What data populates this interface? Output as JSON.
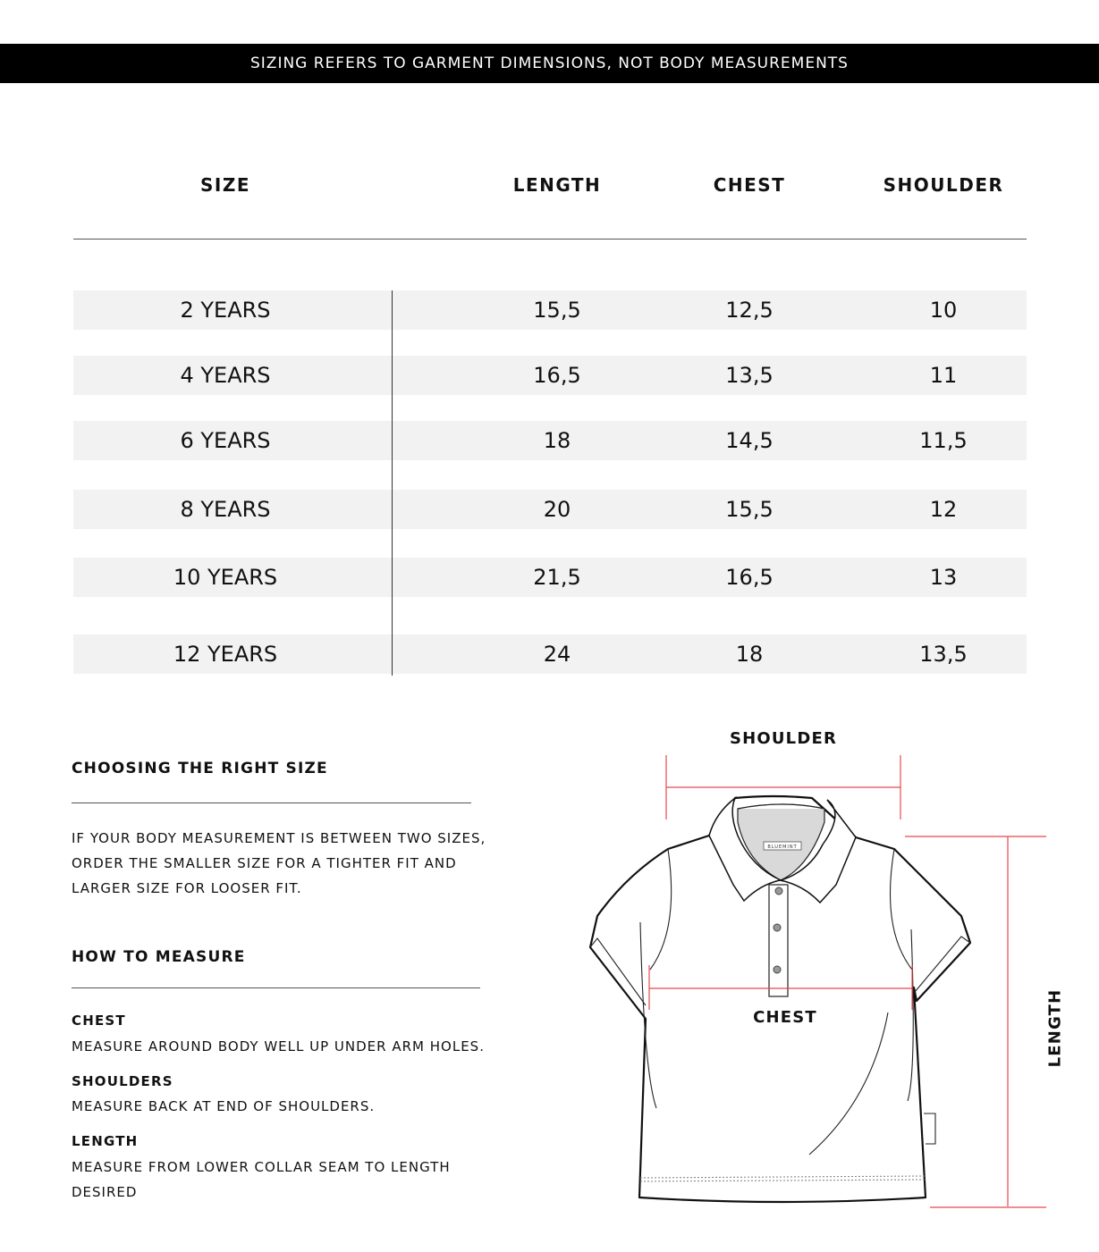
{
  "banner": "SIZING REFERS TO GARMENT DIMENSIONS, NOT BODY MEASUREMENTS",
  "table": {
    "headers": [
      "SIZE",
      "LENGTH",
      "CHEST",
      "SHOULDER"
    ],
    "rows": [
      [
        "2 YEARS",
        "15,5",
        "12,5",
        "10"
      ],
      [
        "4 YEARS",
        "16,5",
        "13,5",
        "11"
      ],
      [
        "6 YEARS",
        "18",
        "14,5",
        "11,5"
      ],
      [
        "8 YEARS",
        "20",
        "15,5",
        "12"
      ],
      [
        "10 YEARS",
        "21,5",
        "16,5",
        "13"
      ],
      [
        "12 YEARS",
        "24",
        "18",
        "13,5"
      ]
    ]
  },
  "choosing": {
    "title": "CHOOSING THE RIGHT SIZE",
    "lines": [
      "IF YOUR BODY MEASUREMENT IS BETWEEN TWO SIZES,",
      "ORDER THE SMALLER SIZE FOR A TIGHTER FIT AND",
      "LARGER SIZE FOR LOOSER FIT."
    ]
  },
  "measure": {
    "title": "HOW TO MEASURE",
    "items": [
      {
        "label": "CHEST",
        "lines": [
          "MEASURE AROUND BODY WELL UP UNDER ARM HOLES."
        ]
      },
      {
        "label": "SHOULDERS",
        "lines": [
          "MEASURE BACK AT END OF SHOULDERS."
        ]
      },
      {
        "label": "LENGTH",
        "lines": [
          "MEASURE FROM LOWER COLLAR SEAM TO LENGTH",
          "DESIRED"
        ]
      }
    ]
  },
  "diagram": {
    "shoulder_label": "SHOULDER",
    "chest_label": "CHEST",
    "length_label": "LENGTH",
    "brand_tag": "BLUEMINT",
    "measure_line_color": "#e8474f"
  }
}
